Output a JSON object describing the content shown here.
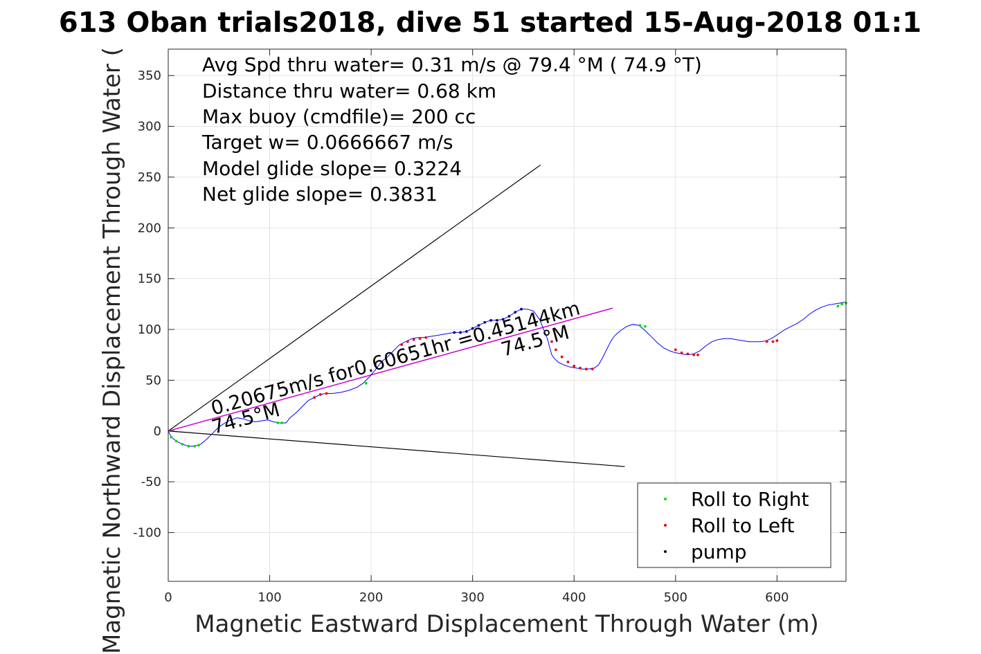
{
  "chart_data": {
    "type": "scatter",
    "title": "613 Oban trials2018, dive 51 started 15-Aug-2018 01:1",
    "xlabel": "Magnetic Eastward Displacement Through Water (m)",
    "ylabel": "Magnetic Northward Displacement Through Water (",
    "xlim": [
      0,
      668
    ],
    "ylim": [
      -148,
      376
    ],
    "xticks": [
      0,
      100,
      200,
      300,
      400,
      500,
      600
    ],
    "yticks": [
      -100,
      -50,
      0,
      50,
      100,
      150,
      200,
      250,
      300,
      350
    ],
    "grid": true,
    "legend_position": "bottom-right",
    "annotations": [
      "Avg Spd thru water=  0.31 m/s @  79.4 °M ( 74.9 °T)",
      "Distance thru water=  0.68 km",
      "Max buoy (cmdfile)= 200 cc",
      "Target w= 0.0666667 m/s",
      "Model glide slope= 0.3224",
      "Net glide slope= 0.3831"
    ],
    "path_labels": {
      "speed_label": "0.20675m/s for0.60651hr =0.45144km",
      "heading_label_1": "74.5°M",
      "heading_label_2": "74.5°M"
    },
    "legend": [
      {
        "label": "Roll to Right",
        "color": "#00dd00"
      },
      {
        "label": "Roll to Left",
        "color": "#ee0000"
      },
      {
        "label": "pump",
        "color": "#000000"
      }
    ],
    "colors": {
      "track": "#0000ff",
      "heading_line": "#cc00cc",
      "wedge": "#000000"
    },
    "wedge_lines": [
      {
        "x": [
          0,
          367
        ],
        "y": [
          0,
          262
        ]
      },
      {
        "x": [
          0,
          450
        ],
        "y": [
          0,
          -35
        ]
      }
    ],
    "heading_line": {
      "x": [
        0,
        438
      ],
      "y": [
        0,
        121
      ]
    },
    "track": {
      "x": [
        0,
        3,
        8,
        14,
        20,
        26,
        32,
        38,
        44,
        50,
        56,
        62,
        68,
        74,
        80,
        86,
        92,
        98,
        104,
        110,
        116,
        120,
        126,
        132,
        138,
        144,
        150,
        156,
        162,
        170,
        178,
        186,
        192,
        198,
        204,
        210,
        216,
        222,
        228,
        234,
        240,
        246,
        252,
        258,
        264,
        270,
        276,
        282,
        288,
        294,
        300,
        306,
        312,
        318,
        324,
        330,
        336,
        342,
        348,
        354,
        360,
        366,
        370,
        374,
        376,
        378,
        380,
        384,
        390,
        396,
        402,
        408,
        414,
        420,
        424,
        428,
        432,
        436,
        440,
        446,
        452,
        458,
        464,
        470,
        476,
        482,
        488,
        494,
        500,
        506,
        512,
        518,
        524,
        530,
        536,
        542,
        548,
        554,
        560,
        566,
        572,
        578,
        584,
        590,
        596,
        602,
        608,
        614,
        620,
        626,
        632,
        638,
        644,
        650,
        656,
        662,
        668
      ],
      "y": [
        0,
        -6,
        -10,
        -13,
        -15,
        -15,
        -13,
        -8,
        -2,
        4,
        8,
        11,
        13,
        12,
        10,
        9,
        10,
        11,
        9,
        8,
        8,
        13,
        18,
        24,
        30,
        33,
        36,
        37,
        37,
        38,
        40,
        43,
        47,
        53,
        60,
        68,
        73,
        79,
        85,
        88,
        91,
        92,
        92,
        93,
        94,
        95,
        96,
        97,
        97,
        98,
        101,
        104,
        107,
        109,
        109,
        110,
        113,
        117,
        120,
        120,
        118,
        110,
        100,
        90,
        82,
        75,
        72,
        68,
        65,
        63,
        62,
        61,
        61,
        62,
        65,
        72,
        80,
        88,
        94,
        99,
        103,
        105,
        104,
        99,
        93,
        87,
        82,
        79,
        77,
        76,
        75,
        76,
        79,
        84,
        88,
        90,
        91,
        91,
        90,
        89,
        88,
        88,
        88,
        89,
        92,
        96,
        100,
        103,
        106,
        110,
        115,
        119,
        122,
        124,
        125,
        126,
        127
      ]
    },
    "series": [
      {
        "name": "Roll to Right",
        "x": [
          3,
          8,
          14,
          20,
          26,
          30,
          108,
          112,
          195,
          465,
          470,
          660,
          664,
          668
        ],
        "y": [
          -6,
          -10,
          -13,
          -15,
          -15,
          -14,
          8,
          8,
          47,
          104,
          103,
          123,
          125,
          126
        ]
      },
      {
        "name": "Roll to Left",
        "x": [
          144,
          150,
          156,
          230,
          236,
          242,
          248,
          254,
          378,
          382,
          388,
          394,
          400,
          406,
          412,
          418,
          500,
          506,
          512,
          518,
          522,
          590,
          596,
          600
        ],
        "y": [
          33,
          36,
          37,
          85,
          88,
          90,
          91,
          92,
          88,
          80,
          73,
          68,
          64,
          62,
          61,
          61,
          80,
          77,
          76,
          75,
          75,
          88,
          88,
          89
        ]
      },
      {
        "name": "pump",
        "x": [
          282,
          288,
          294,
          300,
          306,
          312,
          318,
          324,
          330,
          336,
          342,
          348
        ],
        "y": [
          97,
          97,
          98,
          101,
          104,
          107,
          109,
          109,
          110,
          113,
          117,
          120
        ]
      }
    ]
  }
}
